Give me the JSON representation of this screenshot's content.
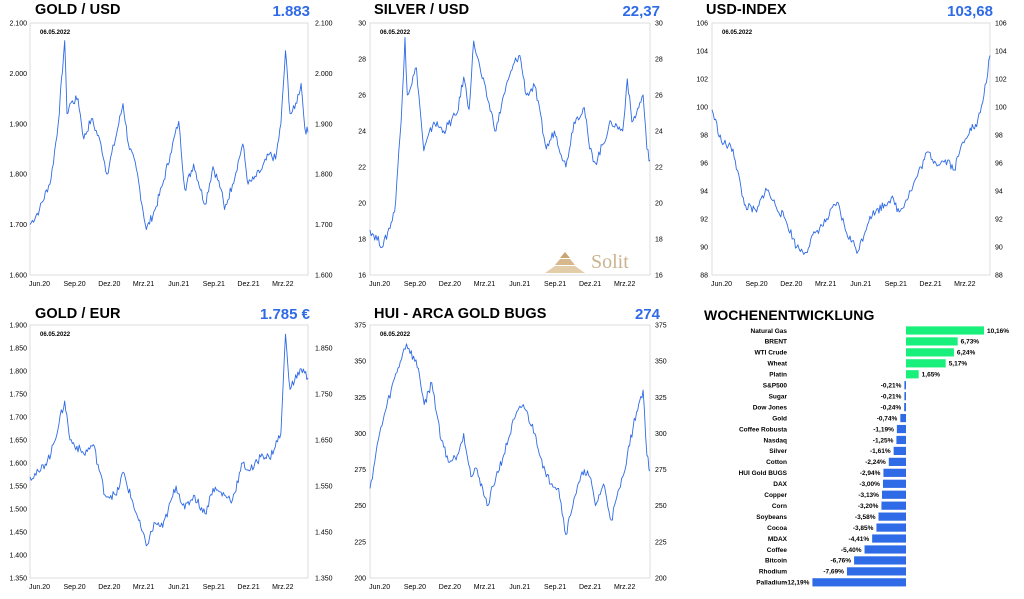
{
  "colors": {
    "line": "#2f6be6",
    "positive": "#19f07c",
    "negative": "#2f6be6",
    "accent": "#2f6be6"
  },
  "logo": {
    "text": "Solit"
  },
  "panels": [
    {
      "id": "gold-usd",
      "title": "GOLD / USD",
      "value": "1.883",
      "date": "06.05.2022",
      "ylim": [
        1600,
        2100
      ],
      "yticks": [
        1600,
        1700,
        1800,
        1900,
        2000,
        2100
      ],
      "ytick_labels": [
        "1.600",
        "1.700",
        "1.800",
        "1.900",
        "2.000",
        "2.100"
      ],
      "right_ytick_labels": [
        "1.600",
        "1.700",
        "1.800",
        "1.900",
        "2.000",
        "2.100"
      ],
      "xtick_labels": [
        "Jun.20",
        "Sep.20",
        "Dez.20",
        "Mrz.21",
        "Jun.21",
        "Sep.21",
        "Dez.21",
        "Mrz.22"
      ]
    },
    {
      "id": "silver-usd",
      "title": "SILVER / USD",
      "value": "22,37",
      "date": "06.05.2022",
      "ylim": [
        16,
        30
      ],
      "yticks": [
        16,
        18,
        20,
        22,
        24,
        26,
        28,
        30
      ],
      "ytick_labels": [
        "16",
        "18",
        "20",
        "22",
        "24",
        "26",
        "28",
        "30"
      ],
      "right_ytick_labels": [
        "16",
        "18",
        "20",
        "22",
        "24",
        "26",
        "28",
        "30"
      ],
      "xtick_labels": [
        "Jun.20",
        "Sep.20",
        "Dez.20",
        "Mrz.21",
        "Jun.21",
        "Sep.21",
        "Dez.21",
        "Mrz.22"
      ]
    },
    {
      "id": "usd-index",
      "title": "USD-INDEX",
      "value": "103,68",
      "date": "06.05.2022",
      "ylim": [
        88,
        106
      ],
      "yticks": [
        88,
        90,
        92,
        94,
        96,
        98,
        100,
        102,
        104,
        106
      ],
      "ytick_labels": [
        "88",
        "90",
        "92",
        "94",
        "96",
        "98",
        "100",
        "102",
        "104",
        "106"
      ],
      "right_ytick_labels": [
        "88",
        "90",
        "92",
        "94",
        "96",
        "98",
        "100",
        "102",
        "104",
        "106"
      ],
      "xtick_labels": [
        "Jun.20",
        "Sep.20",
        "Dez.20",
        "Mrz.21",
        "Jun.21",
        "Sep.21",
        "Dez.21",
        "Mrz.22"
      ]
    },
    {
      "id": "gold-eur",
      "title": "GOLD / EUR",
      "value": "1.785 €",
      "date": "06.05.2022",
      "ylim": [
        1350,
        1900
      ],
      "yticks": [
        1350,
        1400,
        1450,
        1500,
        1550,
        1600,
        1650,
        1700,
        1750,
        1800,
        1850,
        1900
      ],
      "ytick_labels": [
        "1.350",
        "1.400",
        "1.450",
        "1.500",
        "1.550",
        "1.600",
        "1.650",
        "1.700",
        "1.750",
        "1.800",
        "1.850",
        "1.900"
      ],
      "right_ytick_labels": [
        "1.350",
        "",
        "1.450",
        "",
        "1.550",
        "",
        "1.650",
        "",
        "1.750",
        "",
        "1.850",
        ""
      ],
      "xtick_labels": [
        "Jun.20",
        "Sep.20",
        "Dez.20",
        "Mrz.21",
        "Jun.21",
        "Sep.21",
        "Dez.21",
        "Mrz.22"
      ]
    },
    {
      "id": "hui",
      "title": "HUI - ARCA GOLD BUGS",
      "value": "274",
      "date": "06.05.2022",
      "ylim": [
        200,
        375
      ],
      "yticks": [
        200,
        225,
        250,
        275,
        300,
        325,
        350,
        375
      ],
      "ytick_labels": [
        "200",
        "225",
        "250",
        "275",
        "300",
        "325",
        "350",
        "375"
      ],
      "right_ytick_labels": [
        "200",
        "225",
        "250",
        "275",
        "300",
        "325",
        "350",
        "375"
      ],
      "xtick_labels": [
        "Jun.20",
        "Sep.20",
        "Dez.20",
        "Mrz.21",
        "Jun.21",
        "Sep.21",
        "Dez.21",
        "Mrz.22"
      ]
    }
  ],
  "chart_data": [
    {
      "type": "line",
      "title": "GOLD / USD",
      "x": [
        "2020-05-07",
        "2020-06-01",
        "2020-07-01",
        "2020-07-20",
        "2020-08-06",
        "2020-08-12",
        "2020-08-20",
        "2020-09-10",
        "2020-09-25",
        "2020-10-15",
        "2020-11-09",
        "2020-11-25",
        "2020-12-20",
        "2021-01-06",
        "2021-01-20",
        "2021-02-10",
        "2021-03-08",
        "2021-03-31",
        "2021-04-20",
        "2021-05-10",
        "2021-06-01",
        "2021-06-17",
        "2021-07-10",
        "2021-08-09",
        "2021-08-30",
        "2021-09-20",
        "2021-09-29",
        "2021-10-20",
        "2021-11-16",
        "2021-11-30",
        "2021-12-15",
        "2022-01-05",
        "2022-01-25",
        "2022-02-10",
        "2022-02-24",
        "2022-03-08",
        "2022-03-20",
        "2022-04-01",
        "2022-04-18",
        "2022-04-28",
        "2022-05-06"
      ],
      "series": [
        {
          "values": [
            1700,
            1730,
            1790,
            1900,
            2065,
            1920,
            1940,
            1950,
            1870,
            1910,
            1860,
            1800,
            1880,
            1940,
            1860,
            1810,
            1690,
            1730,
            1780,
            1840,
            1905,
            1770,
            1820,
            1740,
            1815,
            1770,
            1730,
            1780,
            1860,
            1780,
            1790,
            1810,
            1840,
            1830,
            1900,
            2045,
            1920,
            1930,
            1980,
            1890,
            1883
          ]
        }
      ],
      "ylim": [
        1600,
        2100
      ]
    },
    {
      "type": "line",
      "title": "SILVER / USD",
      "x": [
        "2020-05-07",
        "2020-06-10",
        "2020-07-10",
        "2020-07-27",
        "2020-08-06",
        "2020-08-12",
        "2020-09-05",
        "2020-09-24",
        "2020-10-20",
        "2020-11-15",
        "2020-12-20",
        "2021-01-06",
        "2021-01-20",
        "2021-02-01",
        "2021-02-20",
        "2021-03-31",
        "2021-04-20",
        "2021-05-18",
        "2021-06-01",
        "2021-06-18",
        "2021-07-10",
        "2021-08-09",
        "2021-08-30",
        "2021-09-29",
        "2021-10-20",
        "2021-11-16",
        "2021-11-30",
        "2021-12-15",
        "2022-01-25",
        "2022-02-24",
        "2022-03-08",
        "2022-03-20",
        "2022-04-01",
        "2022-04-18",
        "2022-04-28",
        "2022-05-06"
      ],
      "series": [
        {
          "values": [
            18.5,
            17.6,
            19.5,
            24.5,
            29.2,
            26.0,
            27.5,
            22.9,
            24.5,
            24.0,
            25.0,
            27.0,
            25.2,
            29.0,
            27.2,
            24.0,
            26.0,
            27.8,
            28.2,
            26.0,
            26.5,
            23.0,
            24.0,
            22.0,
            24.5,
            25.3,
            23.0,
            22.2,
            24.5,
            24.0,
            26.9,
            24.5,
            25.0,
            26.0,
            23.0,
            22.37
          ]
        }
      ],
      "ylim": [
        16,
        30
      ]
    },
    {
      "type": "line",
      "title": "USD-INDEX",
      "x": [
        "2020-05-07",
        "2020-06-01",
        "2020-07-01",
        "2020-07-31",
        "2020-09-01",
        "2020-09-25",
        "2020-10-20",
        "2020-11-15",
        "2020-12-15",
        "2021-01-06",
        "2021-02-01",
        "2021-03-01",
        "2021-03-31",
        "2021-04-25",
        "2021-05-25",
        "2021-06-25",
        "2021-07-10",
        "2021-08-20",
        "2021-09-10",
        "2021-10-10",
        "2021-11-24",
        "2021-12-15",
        "2022-01-15",
        "2022-02-01",
        "2022-02-24",
        "2022-03-15",
        "2022-04-01",
        "2022-04-20",
        "2022-05-06"
      ],
      "series": [
        {
          "values": [
            99.8,
            97.5,
            97.0,
            93.0,
            92.5,
            94.2,
            93.0,
            92.0,
            90.0,
            89.6,
            91.0,
            91.8,
            93.2,
            91.0,
            89.7,
            92.2,
            92.5,
            93.5,
            92.5,
            94.0,
            96.8,
            96.0,
            96.2,
            95.5,
            97.5,
            98.5,
            98.6,
            100.8,
            103.68
          ]
        }
      ],
      "ylim": [
        88,
        106
      ]
    },
    {
      "type": "line",
      "title": "GOLD / EUR",
      "x": [
        "2020-05-07",
        "2020-06-01",
        "2020-07-01",
        "2020-08-06",
        "2020-08-20",
        "2020-09-25",
        "2020-10-20",
        "2020-11-20",
        "2020-12-20",
        "2021-01-06",
        "2021-02-10",
        "2021-03-08",
        "2021-03-31",
        "2021-04-20",
        "2021-05-25",
        "2021-06-17",
        "2021-07-10",
        "2021-08-09",
        "2021-08-30",
        "2021-09-29",
        "2021-10-20",
        "2021-11-16",
        "2021-11-30",
        "2021-12-15",
        "2022-01-05",
        "2022-01-25",
        "2022-02-24",
        "2022-03-08",
        "2022-03-20",
        "2022-04-01",
        "2022-04-18",
        "2022-05-06"
      ],
      "series": [
        {
          "values": [
            1570,
            1580,
            1620,
            1735,
            1650,
            1620,
            1640,
            1530,
            1530,
            1580,
            1490,
            1420,
            1470,
            1460,
            1550,
            1500,
            1530,
            1490,
            1545,
            1530,
            1520,
            1600,
            1585,
            1590,
            1620,
            1610,
            1665,
            1880,
            1760,
            1780,
            1805,
            1785
          ]
        }
      ],
      "ylim": [
        1350,
        1900
      ]
    },
    {
      "type": "line",
      "title": "HUI - ARCA GOLD BUGS",
      "x": [
        "2020-05-07",
        "2020-06-01",
        "2020-07-01",
        "2020-07-31",
        "2020-08-10",
        "2020-09-10",
        "2020-09-25",
        "2020-10-15",
        "2020-11-09",
        "2020-11-30",
        "2020-12-20",
        "2021-01-06",
        "2021-01-25",
        "2021-02-10",
        "2021-03-08",
        "2021-03-31",
        "2021-04-20",
        "2021-05-18",
        "2021-06-10",
        "2021-07-10",
        "2021-08-09",
        "2021-09-10",
        "2021-09-29",
        "2021-10-20",
        "2021-11-16",
        "2021-11-30",
        "2021-12-15",
        "2022-01-05",
        "2022-01-25",
        "2022-02-24",
        "2022-03-08",
        "2022-04-01",
        "2022-04-18",
        "2022-04-28",
        "2022-05-06"
      ],
      "series": [
        {
          "values": [
            262,
            300,
            330,
            355,
            362,
            345,
            320,
            335,
            295,
            280,
            285,
            300,
            270,
            275,
            250,
            270,
            285,
            310,
            320,
            300,
            270,
            262,
            230,
            255,
            275,
            270,
            250,
            265,
            240,
            270,
            285,
            315,
            330,
            285,
            274
          ]
        }
      ],
      "ylim": [
        200,
        375
      ]
    },
    {
      "type": "bar",
      "title": "WOCHENENTWICKLUNG",
      "categories": [
        "Natural Gas",
        "BRENT",
        "WTI Crude",
        "Wheat",
        "Platin",
        "S&P500",
        "Sugar",
        "Dow Jones",
        "Gold",
        "Coffee Robusta",
        "Nasdaq",
        "Silver",
        "Cotton",
        "HUI Gold BUGS",
        "DAX",
        "Copper",
        "Corn",
        "Soybeans",
        "Cocoa",
        "MDAX",
        "Coffee",
        "Bitcoin",
        "Rhodium",
        "Palladium"
      ],
      "values": [
        10.16,
        6.73,
        6.24,
        5.17,
        1.65,
        -0.21,
        -0.21,
        -0.24,
        -0.74,
        -1.19,
        -1.25,
        -1.61,
        -2.24,
        -2.94,
        -3.0,
        -3.13,
        -3.2,
        -3.58,
        -3.85,
        -4.41,
        -5.4,
        -6.76,
        -7.69,
        -12.19
      ],
      "value_labels": [
        "10,16%",
        "6,73%",
        "6,24%",
        "5,17%",
        "1,65%",
        "-0,21%",
        "-0,21%",
        "-0,24%",
        "-0,74%",
        "-1,19%",
        "-1,25%",
        "-1,61%",
        "-2,24%",
        "-2,94%",
        "-3,00%",
        "-3,13%",
        "-3,20%",
        "-3,58%",
        "-3,85%",
        "-4,41%",
        "-5,40%",
        "-6,76%",
        "-7,69%",
        "-12,19%"
      ]
    }
  ]
}
